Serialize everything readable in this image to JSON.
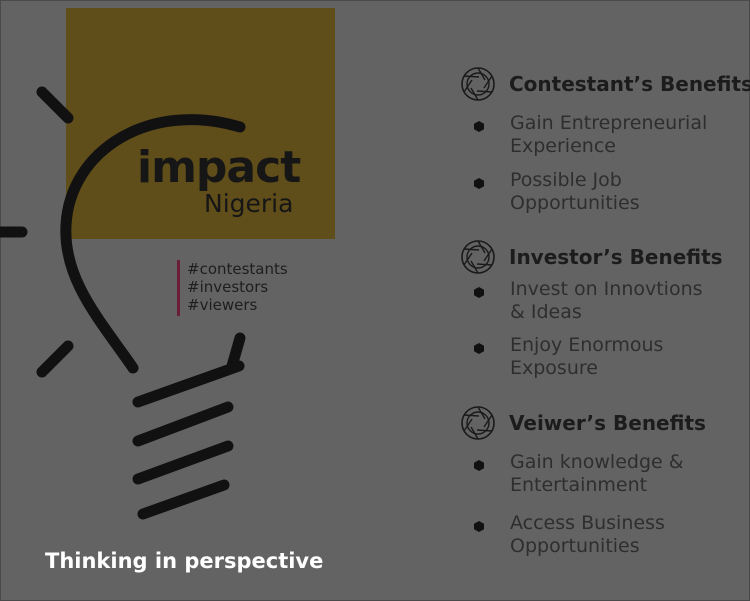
{
  "brand": {
    "logo_main": "impact",
    "logo_sub": "Nigeria"
  },
  "tags": [
    "#contestants",
    "#investors",
    "#viewers"
  ],
  "tagline": "Thinking in perspective",
  "sections": [
    {
      "title": "Contestant’s Benefits",
      "icon": "aperture-icon",
      "items": [
        "Gain Entrepreneurial\nExperience",
        "Possible Job\nOpportunities"
      ]
    },
    {
      "title": "Investor’s Benefits",
      "icon": "aperture-icon",
      "items": [
        "Invest on Innovtions\n& Ideas",
        "Enjoy Enormous\nExposure"
      ]
    },
    {
      "title": "Veiwer’s Benefits",
      "icon": "aperture-icon",
      "items": [
        "Gain knowledge &\nEntertainment",
        "Access Business\nOpportunities"
      ]
    }
  ],
  "colors": {
    "background": "#636363",
    "gold": "#5f4d1a",
    "accent_bar": "#6b1d3a",
    "tagline": "#ffffff"
  }
}
